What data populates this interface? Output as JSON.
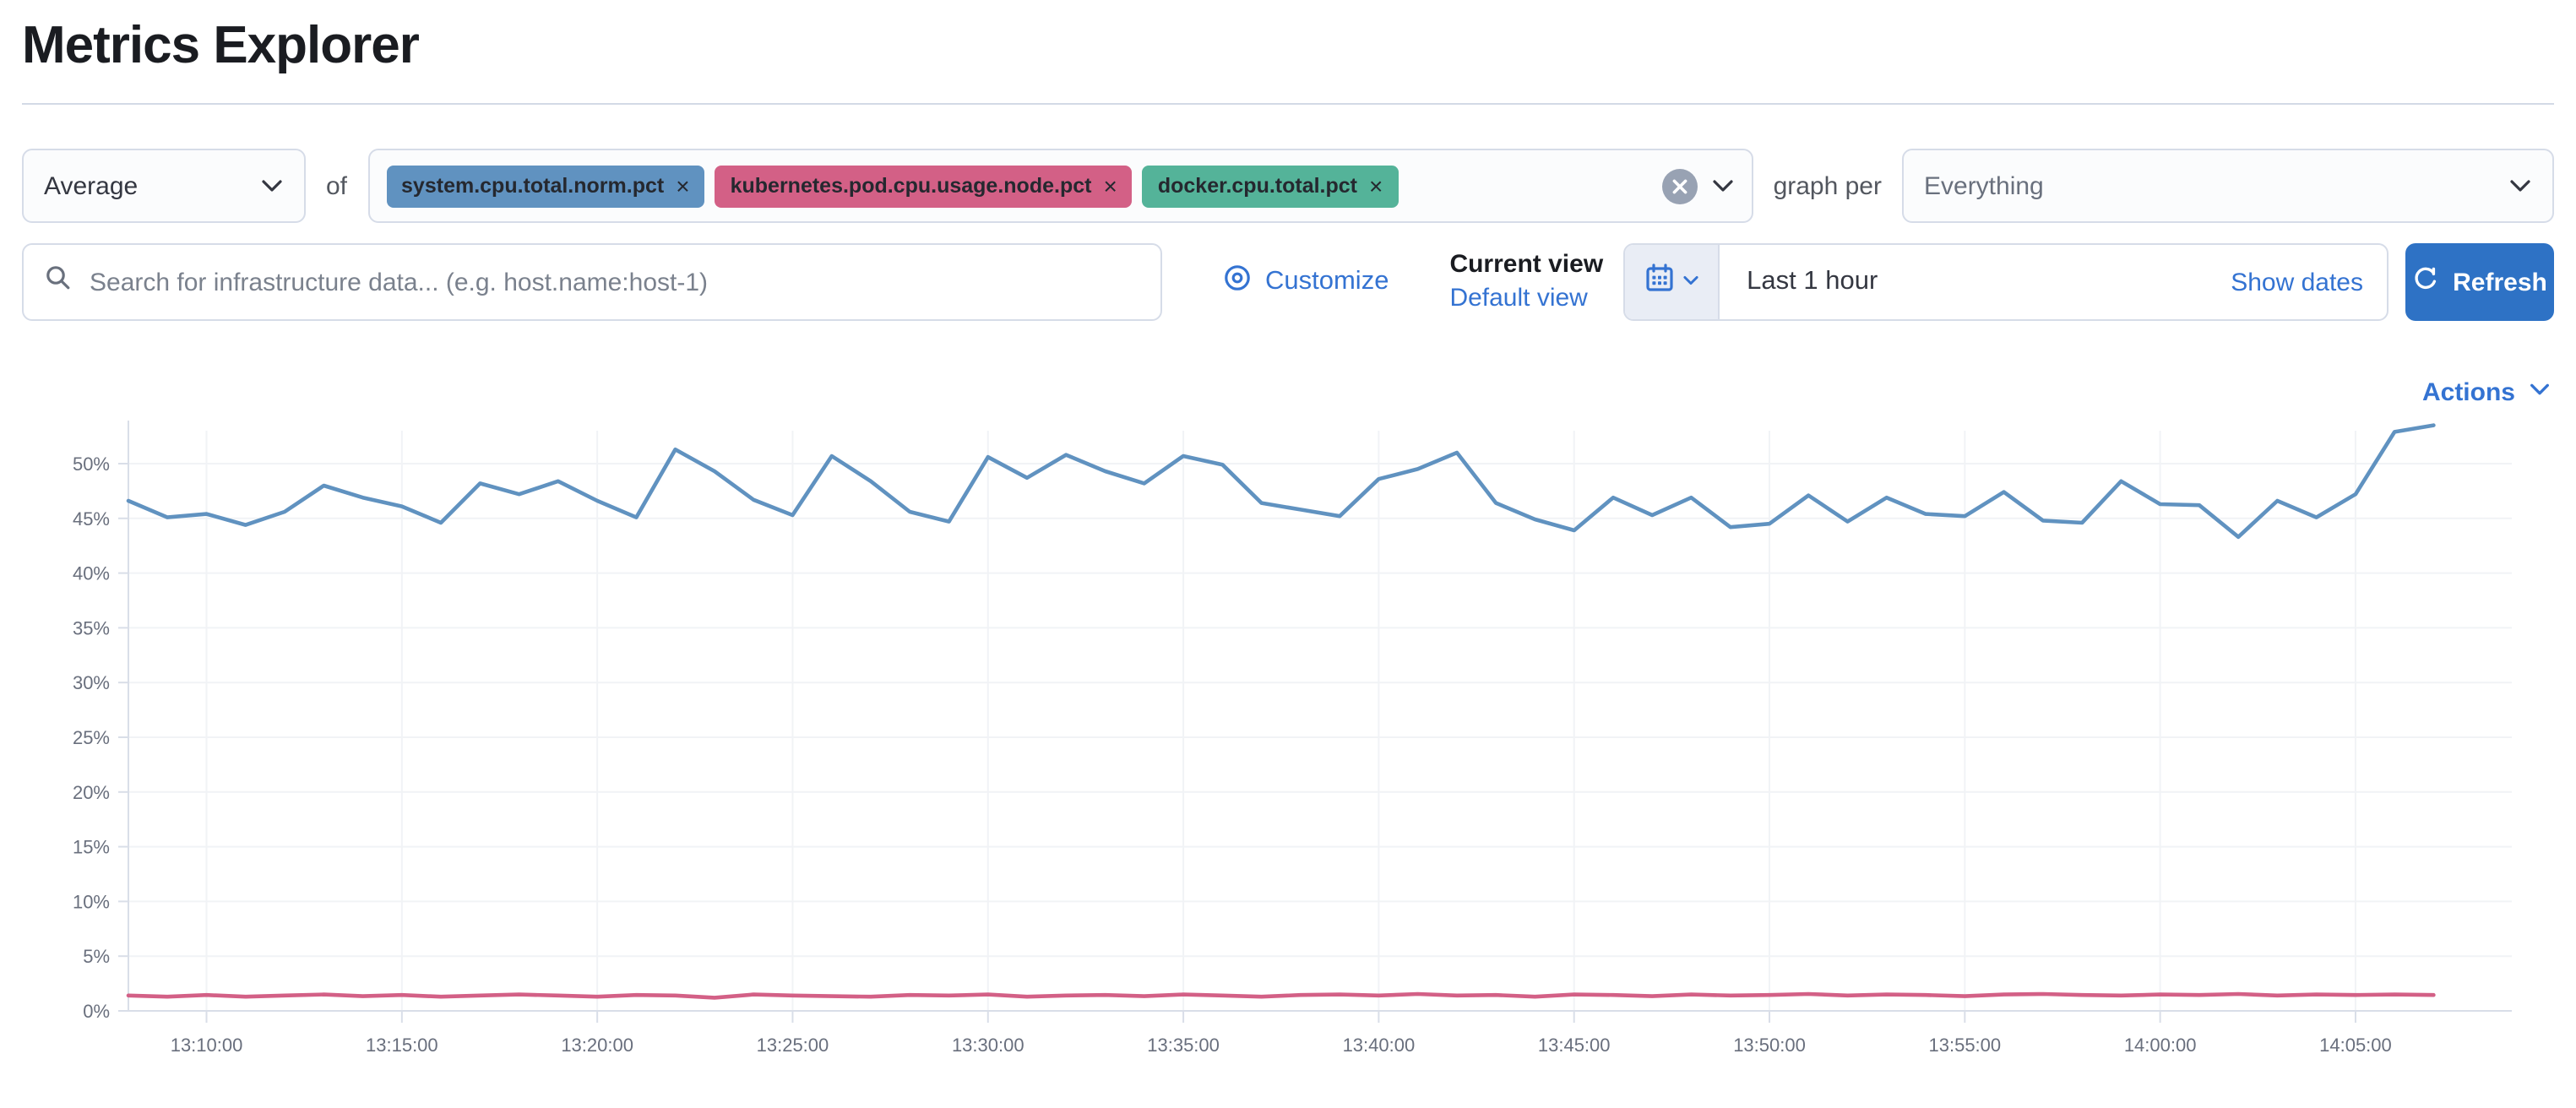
{
  "page": {
    "title": "Metrics Explorer"
  },
  "toolbar": {
    "aggregation": {
      "value": "Average"
    },
    "of_label": "of",
    "metrics": [
      {
        "label": "system.cpu.total.norm.pct",
        "color": "#6092c0",
        "remove_label": "×"
      },
      {
        "label": "kubernetes.pod.cpu.usage.node.pct",
        "color": "#d36086",
        "remove_label": "×"
      },
      {
        "label": "docker.cpu.total.pct",
        "color": "#54b399",
        "remove_label": "×"
      }
    ],
    "graph_per_label": "graph per",
    "group_by": {
      "value": "Everything"
    }
  },
  "filter_bar": {
    "search": {
      "placeholder": "Search for infrastructure data... (e.g. host.name:host-1)"
    },
    "customize_label": "Customize",
    "current_view_label": "Current view",
    "default_view_label": "Default view",
    "time_range": {
      "value": "Last 1 hour",
      "show_dates_label": "Show dates"
    },
    "refresh_label": "Refresh"
  },
  "chart_header": {
    "actions_label": "Actions"
  },
  "icons": {
    "search": "magnifier",
    "customize": "eye-target",
    "calendar": "calendar",
    "refresh": "circular-arrow",
    "clear": "cross-in-circle",
    "chevron": "chevron-down"
  },
  "colors": {
    "link_blue": "#3473d2",
    "button_blue": "#2e72c5",
    "axis_text": "#696f7d",
    "grid": "#f1f3f6",
    "axis_line": "#d9dee8"
  },
  "chart_data": {
    "type": "line",
    "title": "",
    "xlabel": "",
    "ylabel": "",
    "x_start_time": "13:08:00",
    "x_end_time": "14:09:00",
    "interval_seconds": 60,
    "x_tick_labels": [
      "13:10:00",
      "13:15:00",
      "13:20:00",
      "13:25:00",
      "13:30:00",
      "13:35:00",
      "13:40:00",
      "13:45:00",
      "13:50:00",
      "13:55:00",
      "14:00:00",
      "14:05:00"
    ],
    "y_tick_labels": [
      "0%",
      "5%",
      "10%",
      "15%",
      "20%",
      "25%",
      "30%",
      "35%",
      "40%",
      "45%",
      "50%"
    ],
    "y_tick_values": [
      0,
      5,
      10,
      15,
      20,
      25,
      30,
      35,
      40,
      45,
      50
    ],
    "ylim": [
      0,
      54
    ],
    "grid": true,
    "legend": false,
    "series": [
      {
        "name": "system.cpu.total.norm.pct",
        "color": "#6092c0",
        "values": [
          46.6,
          45.1,
          45.4,
          44.4,
          45.6,
          48.0,
          46.9,
          46.1,
          44.6,
          48.2,
          47.2,
          48.4,
          46.6,
          45.1,
          51.3,
          49.3,
          46.7,
          45.3,
          50.7,
          48.4,
          45.6,
          44.7,
          50.6,
          48.7,
          50.8,
          49.3,
          48.2,
          50.7,
          49.9,
          46.4,
          45.8,
          45.2,
          48.6,
          49.5,
          51.0,
          46.4,
          44.9,
          43.9,
          46.9,
          45.3,
          46.9,
          44.2,
          44.5,
          47.1,
          44.7,
          46.9,
          45.4,
          45.2,
          47.4,
          44.8,
          44.6,
          48.4,
          46.3,
          46.2,
          43.3,
          46.6,
          45.1,
          47.2,
          52.9,
          53.5
        ]
      },
      {
        "name": "kubernetes.pod.cpu.usage.node.pct",
        "color": "#d36086",
        "values": [
          1.4,
          1.3,
          1.45,
          1.3,
          1.4,
          1.5,
          1.35,
          1.45,
          1.3,
          1.4,
          1.5,
          1.4,
          1.3,
          1.45,
          1.4,
          1.2,
          1.5,
          1.4,
          1.35,
          1.3,
          1.45,
          1.4,
          1.5,
          1.3,
          1.4,
          1.45,
          1.35,
          1.5,
          1.4,
          1.3,
          1.45,
          1.5,
          1.4,
          1.55,
          1.4,
          1.45,
          1.3,
          1.5,
          1.45,
          1.35,
          1.5,
          1.4,
          1.45,
          1.55,
          1.4,
          1.5,
          1.45,
          1.35,
          1.5,
          1.55,
          1.45,
          1.4,
          1.5,
          1.45,
          1.55,
          1.4,
          1.5,
          1.45,
          1.5,
          1.45
        ]
      }
    ]
  }
}
